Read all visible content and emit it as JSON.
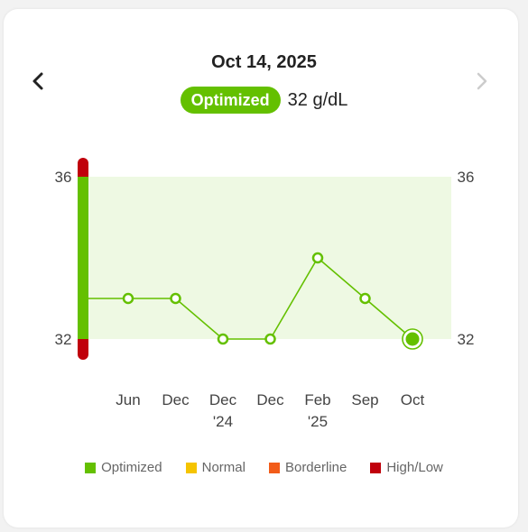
{
  "header": {
    "date": "Oct 14, 2025",
    "status_badge": "Optimized",
    "value": "32 g/dL",
    "prev_icon": "chevron-left-icon",
    "next_icon": "chevron-right-icon"
  },
  "legend": [
    {
      "label": "Optimized",
      "color": "#64c000"
    },
    {
      "label": "Normal",
      "color": "#f5c400"
    },
    {
      "label": "Borderline",
      "color": "#f25c19"
    },
    {
      "label": "High/Low",
      "color": "#c0000b"
    }
  ],
  "colors": {
    "accent": "#64c000",
    "band": "#eef9e3",
    "high_low": "#c0000b",
    "next_disabled": "#cccccc"
  },
  "chart_data": {
    "type": "line",
    "x": [
      [
        "Jun"
      ],
      [
        "Dec"
      ],
      [
        "Dec",
        "'24"
      ],
      [
        "Dec"
      ],
      [
        "Feb",
        "'25"
      ],
      [
        "Sep"
      ],
      [
        "Oct"
      ]
    ],
    "values": [
      33,
      33,
      32,
      32,
      34,
      33,
      32
    ],
    "y_ticks": [
      "36",
      "32"
    ],
    "ylim": [
      32,
      36
    ],
    "optimized_range": [
      32,
      36
    ],
    "selected_index": 6
  }
}
